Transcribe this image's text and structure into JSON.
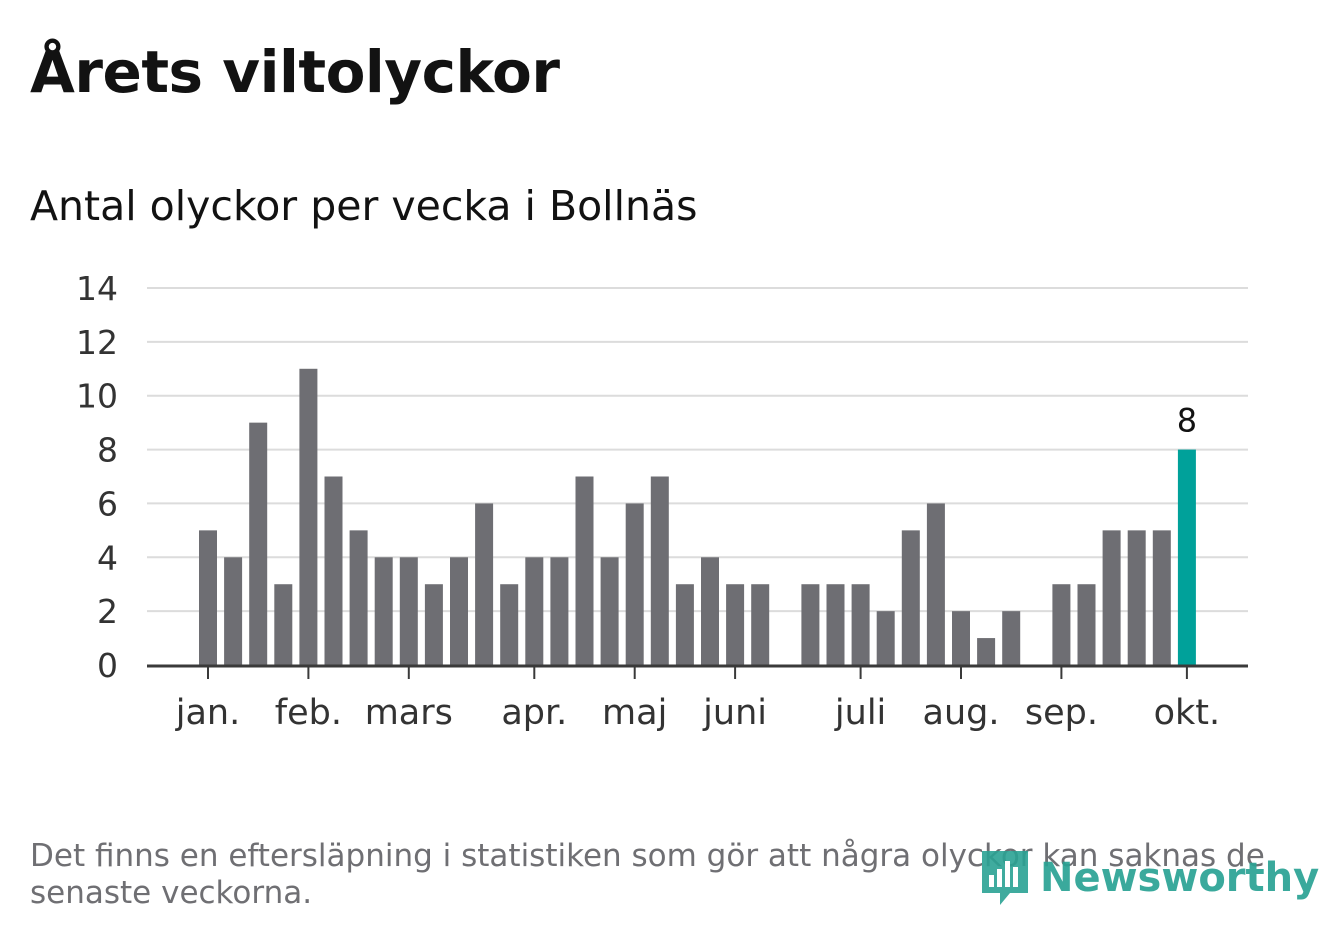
{
  "header": {
    "title": "Årets viltolyckor",
    "subtitle": "Antal olyckor per vecka i Bollnäs"
  },
  "footnote": "Det finns en eftersläpning i statistiken som gör att några olyckor kan saknas de senaste veckorna.",
  "logo": {
    "text": "Newsworthy",
    "icon": "newsworthy-chart-logo-icon"
  },
  "colors": {
    "bar": "#6e6e73",
    "highlight": "#00a19a",
    "grid": "#dcdcdc",
    "axis": "#3a3a3a",
    "text": "#333333"
  },
  "chart_data": {
    "type": "bar",
    "title": "Antal olyckor per vecka i Bollnäs",
    "ylim": [
      0,
      14
    ],
    "yticks": [
      0,
      2,
      4,
      6,
      8,
      10,
      12,
      14
    ],
    "grid": true,
    "x_unit": "week",
    "x": [
      1,
      2,
      3,
      4,
      5,
      6,
      7,
      8,
      9,
      10,
      11,
      12,
      13,
      14,
      15,
      16,
      17,
      18,
      19,
      20,
      21,
      22,
      23,
      24,
      25,
      26,
      27,
      28,
      29,
      30,
      31,
      32,
      33,
      34,
      35,
      36,
      37,
      38,
      39,
      40
    ],
    "values": [
      5,
      4,
      9,
      3,
      11,
      7,
      5,
      4,
      4,
      3,
      4,
      6,
      3,
      4,
      4,
      7,
      4,
      6,
      7,
      3,
      4,
      3,
      3,
      0,
      3,
      3,
      3,
      2,
      5,
      6,
      2,
      1,
      2,
      0,
      3,
      3,
      5,
      5,
      5,
      8
    ],
    "highlight_index": 39,
    "highlight_label": "8",
    "month_ticks": [
      {
        "label": "jan.",
        "week": 1
      },
      {
        "label": "feb.",
        "week": 5
      },
      {
        "label": "mars",
        "week": 9
      },
      {
        "label": "apr.",
        "week": 14
      },
      {
        "label": "maj",
        "week": 18
      },
      {
        "label": "juni",
        "week": 22
      },
      {
        "label": "juli",
        "week": 27
      },
      {
        "label": "aug.",
        "week": 31
      },
      {
        "label": "sep.",
        "week": 35
      },
      {
        "label": "okt.",
        "week": 40
      }
    ]
  }
}
